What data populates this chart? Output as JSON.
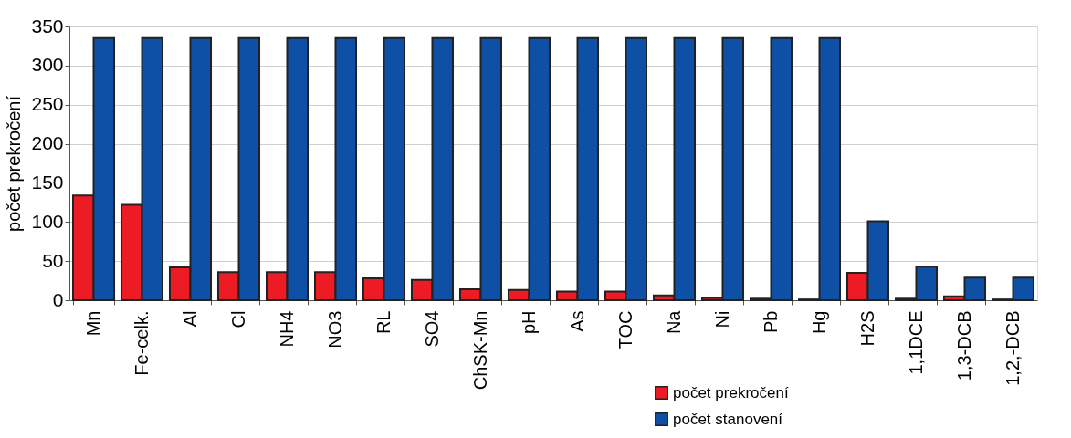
{
  "chart_data": {
    "type": "bar",
    "ylabel": "počet prekročení",
    "categories": [
      "Mn",
      "Fe-celk.",
      "Al",
      "Cl",
      "NH4",
      "NO3",
      "RL",
      "SO4",
      "ChSK-Mn",
      "pH",
      "As",
      "TOC",
      "Na",
      "Ni",
      "Pb",
      "Hg",
      "H2S",
      "1,1DCE",
      "1,3-DCB",
      "1,2,-DCB"
    ],
    "series": [
      {
        "name": "počet prekročení",
        "color": "#ed1c24",
        "values": [
          134,
          122,
          42,
          36,
          36,
          36,
          28,
          26,
          14,
          13,
          11,
          11,
          6,
          3,
          2,
          1,
          35,
          2,
          5,
          1
        ]
      },
      {
        "name": "počet stanovení",
        "color": "#0d50a5",
        "values": [
          335,
          335,
          335,
          335,
          335,
          335,
          335,
          335,
          335,
          335,
          335,
          335,
          335,
          335,
          335,
          335,
          101,
          43,
          29,
          29
        ]
      }
    ],
    "ylim": [
      0,
      350
    ],
    "yticks": [
      0,
      50,
      100,
      150,
      200,
      250,
      300,
      350
    ],
    "grid": "y",
    "legend": "bottom"
  }
}
